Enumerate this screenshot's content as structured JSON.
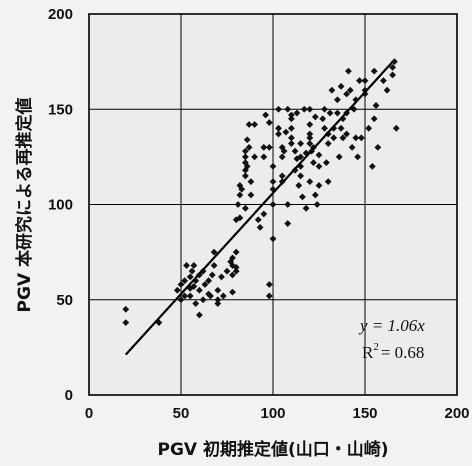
{
  "chart_data": {
    "type": "scatter",
    "title": "",
    "xlabel": "PGV 初期推定値(山口・山崎)",
    "ylabel": "PGV 本研究による再推定値",
    "xlim": [
      0,
      200
    ],
    "ylim": [
      0,
      200
    ],
    "xticks": [
      "0",
      "50",
      "100",
      "150",
      "200"
    ],
    "yticks": [
      "0",
      "50",
      "100",
      "150",
      "200"
    ],
    "grid": true,
    "point_color": "#111111",
    "regression": {
      "slope": 1.06,
      "x_range": [
        20,
        165
      ]
    },
    "annotations": {
      "equation": "y = 1.06x",
      "r2_label": "R",
      "r2_sup": "2",
      "r2_value": "= 0.68"
    },
    "series": [
      {
        "x": [
          20,
          20,
          38,
          48,
          50,
          50,
          52,
          52,
          53,
          55,
          55,
          55,
          56,
          57,
          57,
          58,
          58,
          60,
          60,
          60,
          62,
          62,
          63,
          65,
          65,
          66,
          67,
          68,
          68,
          70,
          70,
          70,
          72,
          73,
          75,
          77,
          78,
          78,
          78,
          78,
          80,
          80,
          80,
          80,
          81,
          82,
          82,
          82,
          83,
          85,
          85,
          85,
          85,
          85,
          85,
          86,
          86,
          87,
          87,
          88,
          88,
          90,
          90,
          92,
          93,
          95,
          95,
          95,
          96,
          98,
          98,
          98,
          98,
          100,
          100,
          100,
          100,
          100,
          103,
          103,
          103,
          105,
          105,
          105,
          105,
          106,
          107,
          108,
          108,
          108,
          110,
          110,
          110,
          110,
          110,
          112,
          112,
          113,
          113,
          114,
          115,
          115,
          115,
          115,
          116,
          117,
          118,
          118,
          120,
          120,
          120,
          120,
          120,
          120,
          121,
          122,
          122,
          123,
          123,
          124,
          125,
          125,
          125,
          127,
          128,
          128,
          129,
          130,
          130,
          130,
          131,
          132,
          133,
          133,
          135,
          135,
          136,
          137,
          137,
          138,
          138,
          140,
          140,
          140,
          141,
          142,
          143,
          144,
          145,
          145,
          146,
          147,
          148,
          150,
          150,
          150,
          152,
          154,
          155,
          155,
          156,
          157,
          160,
          162,
          165,
          165,
          166,
          167
        ],
        "y": [
          45,
          38,
          38,
          55,
          58,
          50,
          52,
          60,
          68,
          52,
          56,
          62,
          65,
          57,
          68,
          48,
          60,
          55,
          42,
          63,
          65,
          50,
          58,
          60,
          53,
          52,
          63,
          75,
          68,
          55,
          48,
          50,
          62,
          52,
          65,
          70,
          72,
          68,
          63,
          54,
          65,
          75,
          92,
          67,
          100,
          93,
          110,
          105,
          108,
          98,
          115,
          118,
          122,
          125,
          128,
          134,
          120,
          142,
          130,
          105,
          112,
          142,
          125,
          92,
          88,
          130,
          125,
          95,
          147,
          130,
          143,
          58,
          52,
          108,
          112,
          120,
          100,
          82,
          150,
          140,
          137,
          125,
          115,
          112,
          130,
          128,
          138,
          100,
          90,
          150,
          145,
          140,
          135,
          147,
          132,
          118,
          128,
          148,
          124,
          110,
          125,
          132,
          120,
          115,
          104,
          150,
          127,
          98,
          142,
          137,
          132,
          135,
          150,
          112,
          128,
          130,
          122,
          146,
          105,
          100,
          126,
          120,
          110,
          145,
          150,
          140,
          122,
          112,
          137,
          132,
          148,
          160,
          135,
          140,
          155,
          148,
          125,
          162,
          140,
          145,
          135,
          158,
          148,
          137,
          170,
          160,
          130,
          150,
          135,
          155,
          125,
          165,
          135,
          160,
          165,
          158,
          140,
          120,
          170,
          145,
          152,
          130,
          165,
          160,
          168,
          172,
          175,
          140
        ]
      }
    ]
  }
}
